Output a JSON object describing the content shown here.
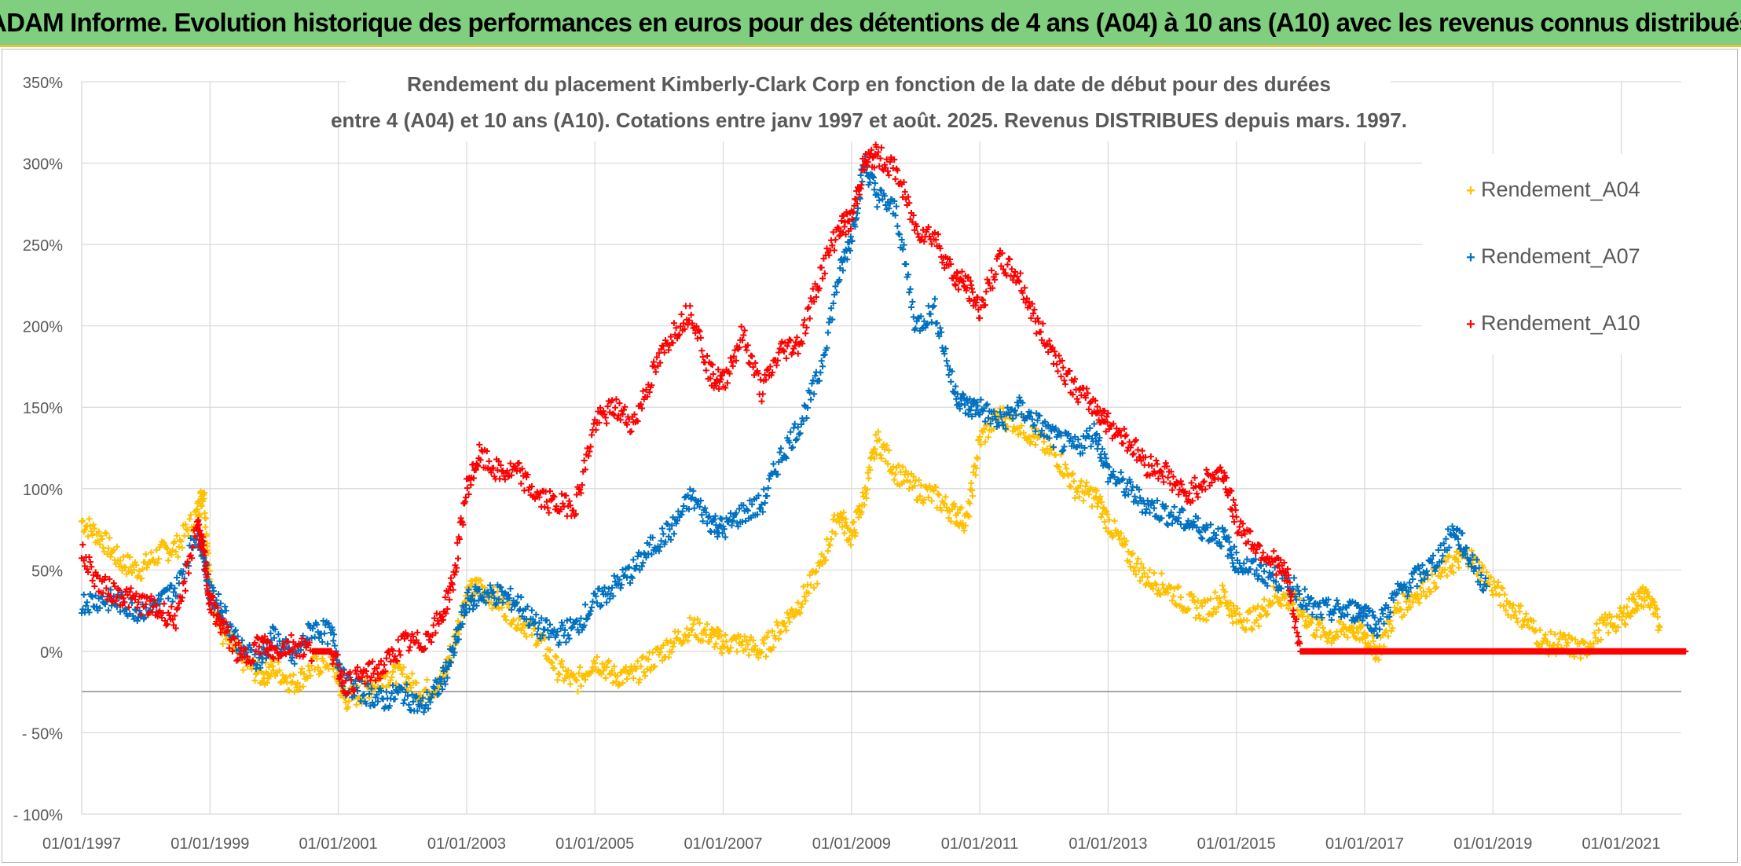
{
  "header": {
    "title": "ADAM Informe. Evolution historique des performances en euros pour des détentions de 4 ans (A04) à 10 ans (A10) avec les revenus connus distribués"
  },
  "chart_data": {
    "type": "scatter",
    "title_line1": "Rendement du placement Kimberly-Clark Corp en fonction de la date de début pour des durées",
    "title_line2": "entre 4 (A04) et 10 ans (A10). Cotations entre janv 1997 et août. 2025. Revenus DISTRIBUES depuis mars. 1997.",
    "xlabel": "",
    "ylabel": "",
    "x_ticks": [
      "01/01/1997",
      "01/01/1999",
      "01/01/2001",
      "01/01/2003",
      "01/01/2005",
      "01/01/2007",
      "01/01/2009",
      "01/01/2011",
      "01/01/2013",
      "01/01/2015",
      "01/01/2017",
      "01/01/2019",
      "01/01/2021"
    ],
    "y_ticks": [
      "- 100%",
      "- 50%",
      "0%",
      "50%",
      "100%",
      "150%",
      "200%",
      "250%",
      "300%",
      "350%"
    ],
    "y_tick_values": [
      -100,
      -50,
      0,
      50,
      100,
      150,
      200,
      250,
      300,
      350
    ],
    "ylim": [
      -100,
      350
    ],
    "xlim": [
      1997.0,
      2022.0
    ],
    "x_unit": "year",
    "y_unit": "percent",
    "grid": true,
    "legend_position": "top-right",
    "marker": "+",
    "series": [
      {
        "name": "Rendement_A04",
        "color": "#ffc000",
        "points": [
          [
            1997.0,
            80
          ],
          [
            1997.3,
            70
          ],
          [
            1997.6,
            55
          ],
          [
            1997.9,
            50
          ],
          [
            1998.2,
            60
          ],
          [
            1998.5,
            65
          ],
          [
            1998.8,
            85
          ],
          [
            1998.9,
            100
          ],
          [
            1999.0,
            40
          ],
          [
            1999.2,
            10
          ],
          [
            1999.5,
            -5
          ],
          [
            1999.8,
            -15
          ],
          [
            2000.0,
            -10
          ],
          [
            2000.3,
            -20
          ],
          [
            2000.6,
            -10
          ],
          [
            2000.9,
            -5
          ],
          [
            2001.1,
            -30
          ],
          [
            2001.4,
            -25
          ],
          [
            2001.7,
            -15
          ],
          [
            2002.0,
            -15
          ],
          [
            2002.3,
            -25
          ],
          [
            2002.6,
            -20
          ],
          [
            2002.8,
            5
          ],
          [
            2003.0,
            35
          ],
          [
            2003.2,
            40
          ],
          [
            2003.5,
            30
          ],
          [
            2003.8,
            20
          ],
          [
            2004.1,
            10
          ],
          [
            2004.4,
            -10
          ],
          [
            2004.7,
            -20
          ],
          [
            2005.0,
            -5
          ],
          [
            2005.3,
            -15
          ],
          [
            2005.6,
            -15
          ],
          [
            2005.9,
            -5
          ],
          [
            2006.2,
            5
          ],
          [
            2006.5,
            15
          ],
          [
            2006.8,
            10
          ],
          [
            2007.0,
            5
          ],
          [
            2007.3,
            5
          ],
          [
            2007.6,
            0
          ],
          [
            2007.9,
            15
          ],
          [
            2008.2,
            30
          ],
          [
            2008.5,
            50
          ],
          [
            2008.8,
            85
          ],
          [
            2009.0,
            70
          ],
          [
            2009.2,
            95
          ],
          [
            2009.4,
            130
          ],
          [
            2009.7,
            110
          ],
          [
            2010.0,
            100
          ],
          [
            2010.3,
            95
          ],
          [
            2010.6,
            85
          ],
          [
            2010.8,
            80
          ],
          [
            2011.0,
            130
          ],
          [
            2011.3,
            145
          ],
          [
            2011.6,
            140
          ],
          [
            2011.9,
            130
          ],
          [
            2012.2,
            120
          ],
          [
            2012.5,
            100
          ],
          [
            2012.8,
            95
          ],
          [
            2013.0,
            80
          ],
          [
            2013.3,
            60
          ],
          [
            2013.6,
            45
          ],
          [
            2013.9,
            40
          ],
          [
            2014.2,
            30
          ],
          [
            2014.5,
            25
          ],
          [
            2014.8,
            35
          ],
          [
            2015.0,
            20
          ],
          [
            2015.3,
            20
          ],
          [
            2015.6,
            35
          ],
          [
            2015.9,
            30
          ],
          [
            2016.2,
            15
          ],
          [
            2016.5,
            10
          ],
          [
            2016.8,
            15
          ],
          [
            2017.0,
            10
          ],
          [
            2017.2,
            0
          ],
          [
            2017.5,
            25
          ],
          [
            2017.8,
            35
          ],
          [
            2018.1,
            45
          ],
          [
            2018.4,
            55
          ],
          [
            2018.6,
            60
          ],
          [
            2018.9,
            45
          ],
          [
            2019.2,
            30
          ],
          [
            2019.5,
            20
          ],
          [
            2019.8,
            5
          ],
          [
            2020.1,
            5
          ],
          [
            2020.4,
            0
          ],
          [
            2020.7,
            15
          ],
          [
            2021.0,
            20
          ],
          [
            2021.2,
            30
          ],
          [
            2021.4,
            35
          ],
          [
            2021.6,
            15
          ]
        ]
      },
      {
        "name": "Rendement_A07",
        "color": "#0070c0",
        "points": [
          [
            1997.0,
            30
          ],
          [
            1997.3,
            32
          ],
          [
            1997.6,
            30
          ],
          [
            1997.9,
            25
          ],
          [
            1998.2,
            30
          ],
          [
            1998.5,
            40
          ],
          [
            1998.8,
            75
          ],
          [
            1998.9,
            60
          ],
          [
            1999.0,
            35
          ],
          [
            1999.2,
            25
          ],
          [
            1999.5,
            0
          ],
          [
            1999.8,
            -5
          ],
          [
            2000.0,
            10
          ],
          [
            2000.3,
            -5
          ],
          [
            2000.6,
            15
          ],
          [
            2000.9,
            10
          ],
          [
            2001.1,
            -20
          ],
          [
            2001.4,
            -25
          ],
          [
            2001.7,
            -30
          ],
          [
            2002.0,
            -25
          ],
          [
            2002.3,
            -35
          ],
          [
            2002.6,
            -20
          ],
          [
            2002.8,
            0
          ],
          [
            2003.0,
            30
          ],
          [
            2003.2,
            35
          ],
          [
            2003.5,
            35
          ],
          [
            2003.8,
            30
          ],
          [
            2004.1,
            15
          ],
          [
            2004.4,
            10
          ],
          [
            2004.7,
            15
          ],
          [
            2005.0,
            30
          ],
          [
            2005.3,
            40
          ],
          [
            2005.6,
            50
          ],
          [
            2005.9,
            65
          ],
          [
            2006.2,
            75
          ],
          [
            2006.5,
            95
          ],
          [
            2006.8,
            80
          ],
          [
            2007.0,
            75
          ],
          [
            2007.3,
            85
          ],
          [
            2007.6,
            90
          ],
          [
            2007.9,
            120
          ],
          [
            2008.2,
            140
          ],
          [
            2008.5,
            170
          ],
          [
            2008.8,
            230
          ],
          [
            2009.0,
            255
          ],
          [
            2009.2,
            300
          ],
          [
            2009.4,
            280
          ],
          [
            2009.7,
            270
          ],
          [
            2010.0,
            200
          ],
          [
            2010.3,
            210
          ],
          [
            2010.6,
            160
          ],
          [
            2010.8,
            150
          ],
          [
            2011.0,
            150
          ],
          [
            2011.3,
            140
          ],
          [
            2011.6,
            150
          ],
          [
            2011.9,
            140
          ],
          [
            2012.2,
            130
          ],
          [
            2012.5,
            125
          ],
          [
            2012.8,
            135
          ],
          [
            2013.0,
            110
          ],
          [
            2013.3,
            100
          ],
          [
            2013.6,
            90
          ],
          [
            2013.9,
            85
          ],
          [
            2014.2,
            80
          ],
          [
            2014.5,
            75
          ],
          [
            2014.8,
            70
          ],
          [
            2015.0,
            55
          ],
          [
            2015.3,
            50
          ],
          [
            2015.6,
            45
          ],
          [
            2015.9,
            40
          ],
          [
            2016.2,
            25
          ],
          [
            2016.5,
            25
          ],
          [
            2016.8,
            25
          ],
          [
            2017.0,
            25
          ],
          [
            2017.2,
            15
          ],
          [
            2017.5,
            35
          ],
          [
            2017.8,
            45
          ],
          [
            2018.1,
            55
          ],
          [
            2018.4,
            75
          ],
          [
            2018.6,
            60
          ],
          [
            2018.9,
            40
          ]
        ]
      },
      {
        "name": "Rendement_A10",
        "color": "#ff0000",
        "points": [
          [
            1997.0,
            60
          ],
          [
            1997.3,
            40
          ],
          [
            1997.6,
            35
          ],
          [
            1997.9,
            30
          ],
          [
            1998.2,
            25
          ],
          [
            1998.5,
            20
          ],
          [
            1998.8,
            80
          ],
          [
            1998.9,
            60
          ],
          [
            1999.0,
            30
          ],
          [
            1999.2,
            15
          ],
          [
            1999.5,
            -5
          ],
          [
            1999.8,
            5
          ],
          [
            2000.0,
            0
          ],
          [
            2000.3,
            5
          ],
          [
            2000.6,
            0
          ],
          [
            2000.9,
            0
          ],
          [
            2001.1,
            -20
          ],
          [
            2001.4,
            -15
          ],
          [
            2001.7,
            -10
          ],
          [
            2002.0,
            5
          ],
          [
            2002.3,
            5
          ],
          [
            2002.6,
            20
          ],
          [
            2002.8,
            45
          ],
          [
            2003.0,
            100
          ],
          [
            2003.2,
            120
          ],
          [
            2003.5,
            110
          ],
          [
            2003.8,
            110
          ],
          [
            2004.1,
            95
          ],
          [
            2004.4,
            90
          ],
          [
            2004.7,
            90
          ],
          [
            2005.0,
            140
          ],
          [
            2005.3,
            150
          ],
          [
            2005.6,
            140
          ],
          [
            2005.9,
            170
          ],
          [
            2006.2,
            195
          ],
          [
            2006.5,
            210
          ],
          [
            2006.8,
            170
          ],
          [
            2007.0,
            165
          ],
          [
            2007.3,
            195
          ],
          [
            2007.6,
            160
          ],
          [
            2007.9,
            185
          ],
          [
            2008.2,
            190
          ],
          [
            2008.5,
            230
          ],
          [
            2008.8,
            260
          ],
          [
            2009.0,
            265
          ],
          [
            2009.2,
            300
          ],
          [
            2009.4,
            305
          ],
          [
            2009.7,
            295
          ],
          [
            2010.0,
            260
          ],
          [
            2010.3,
            255
          ],
          [
            2010.6,
            230
          ],
          [
            2010.8,
            225
          ],
          [
            2011.0,
            210
          ],
          [
            2011.3,
            240
          ],
          [
            2011.6,
            230
          ],
          [
            2011.9,
            200
          ],
          [
            2012.2,
            180
          ],
          [
            2012.5,
            160
          ],
          [
            2012.8,
            150
          ],
          [
            2013.0,
            140
          ],
          [
            2013.3,
            130
          ],
          [
            2013.6,
            115
          ],
          [
            2013.9,
            110
          ],
          [
            2014.2,
            95
          ],
          [
            2014.5,
            105
          ],
          [
            2014.8,
            110
          ],
          [
            2015.0,
            80
          ],
          [
            2015.3,
            65
          ],
          [
            2015.6,
            55
          ],
          [
            2015.8,
            45
          ],
          [
            2016.0,
            0
          ],
          [
            2016.5,
            0
          ],
          [
            2017.0,
            0
          ],
          [
            2017.5,
            0
          ],
          [
            2018.0,
            0
          ],
          [
            2018.5,
            0
          ],
          [
            2019.0,
            0
          ],
          [
            2019.5,
            0
          ],
          [
            2020.0,
            0
          ],
          [
            2020.5,
            0
          ],
          [
            2021.0,
            0
          ],
          [
            2021.5,
            0
          ],
          [
            2022.0,
            0
          ]
        ]
      }
    ]
  }
}
